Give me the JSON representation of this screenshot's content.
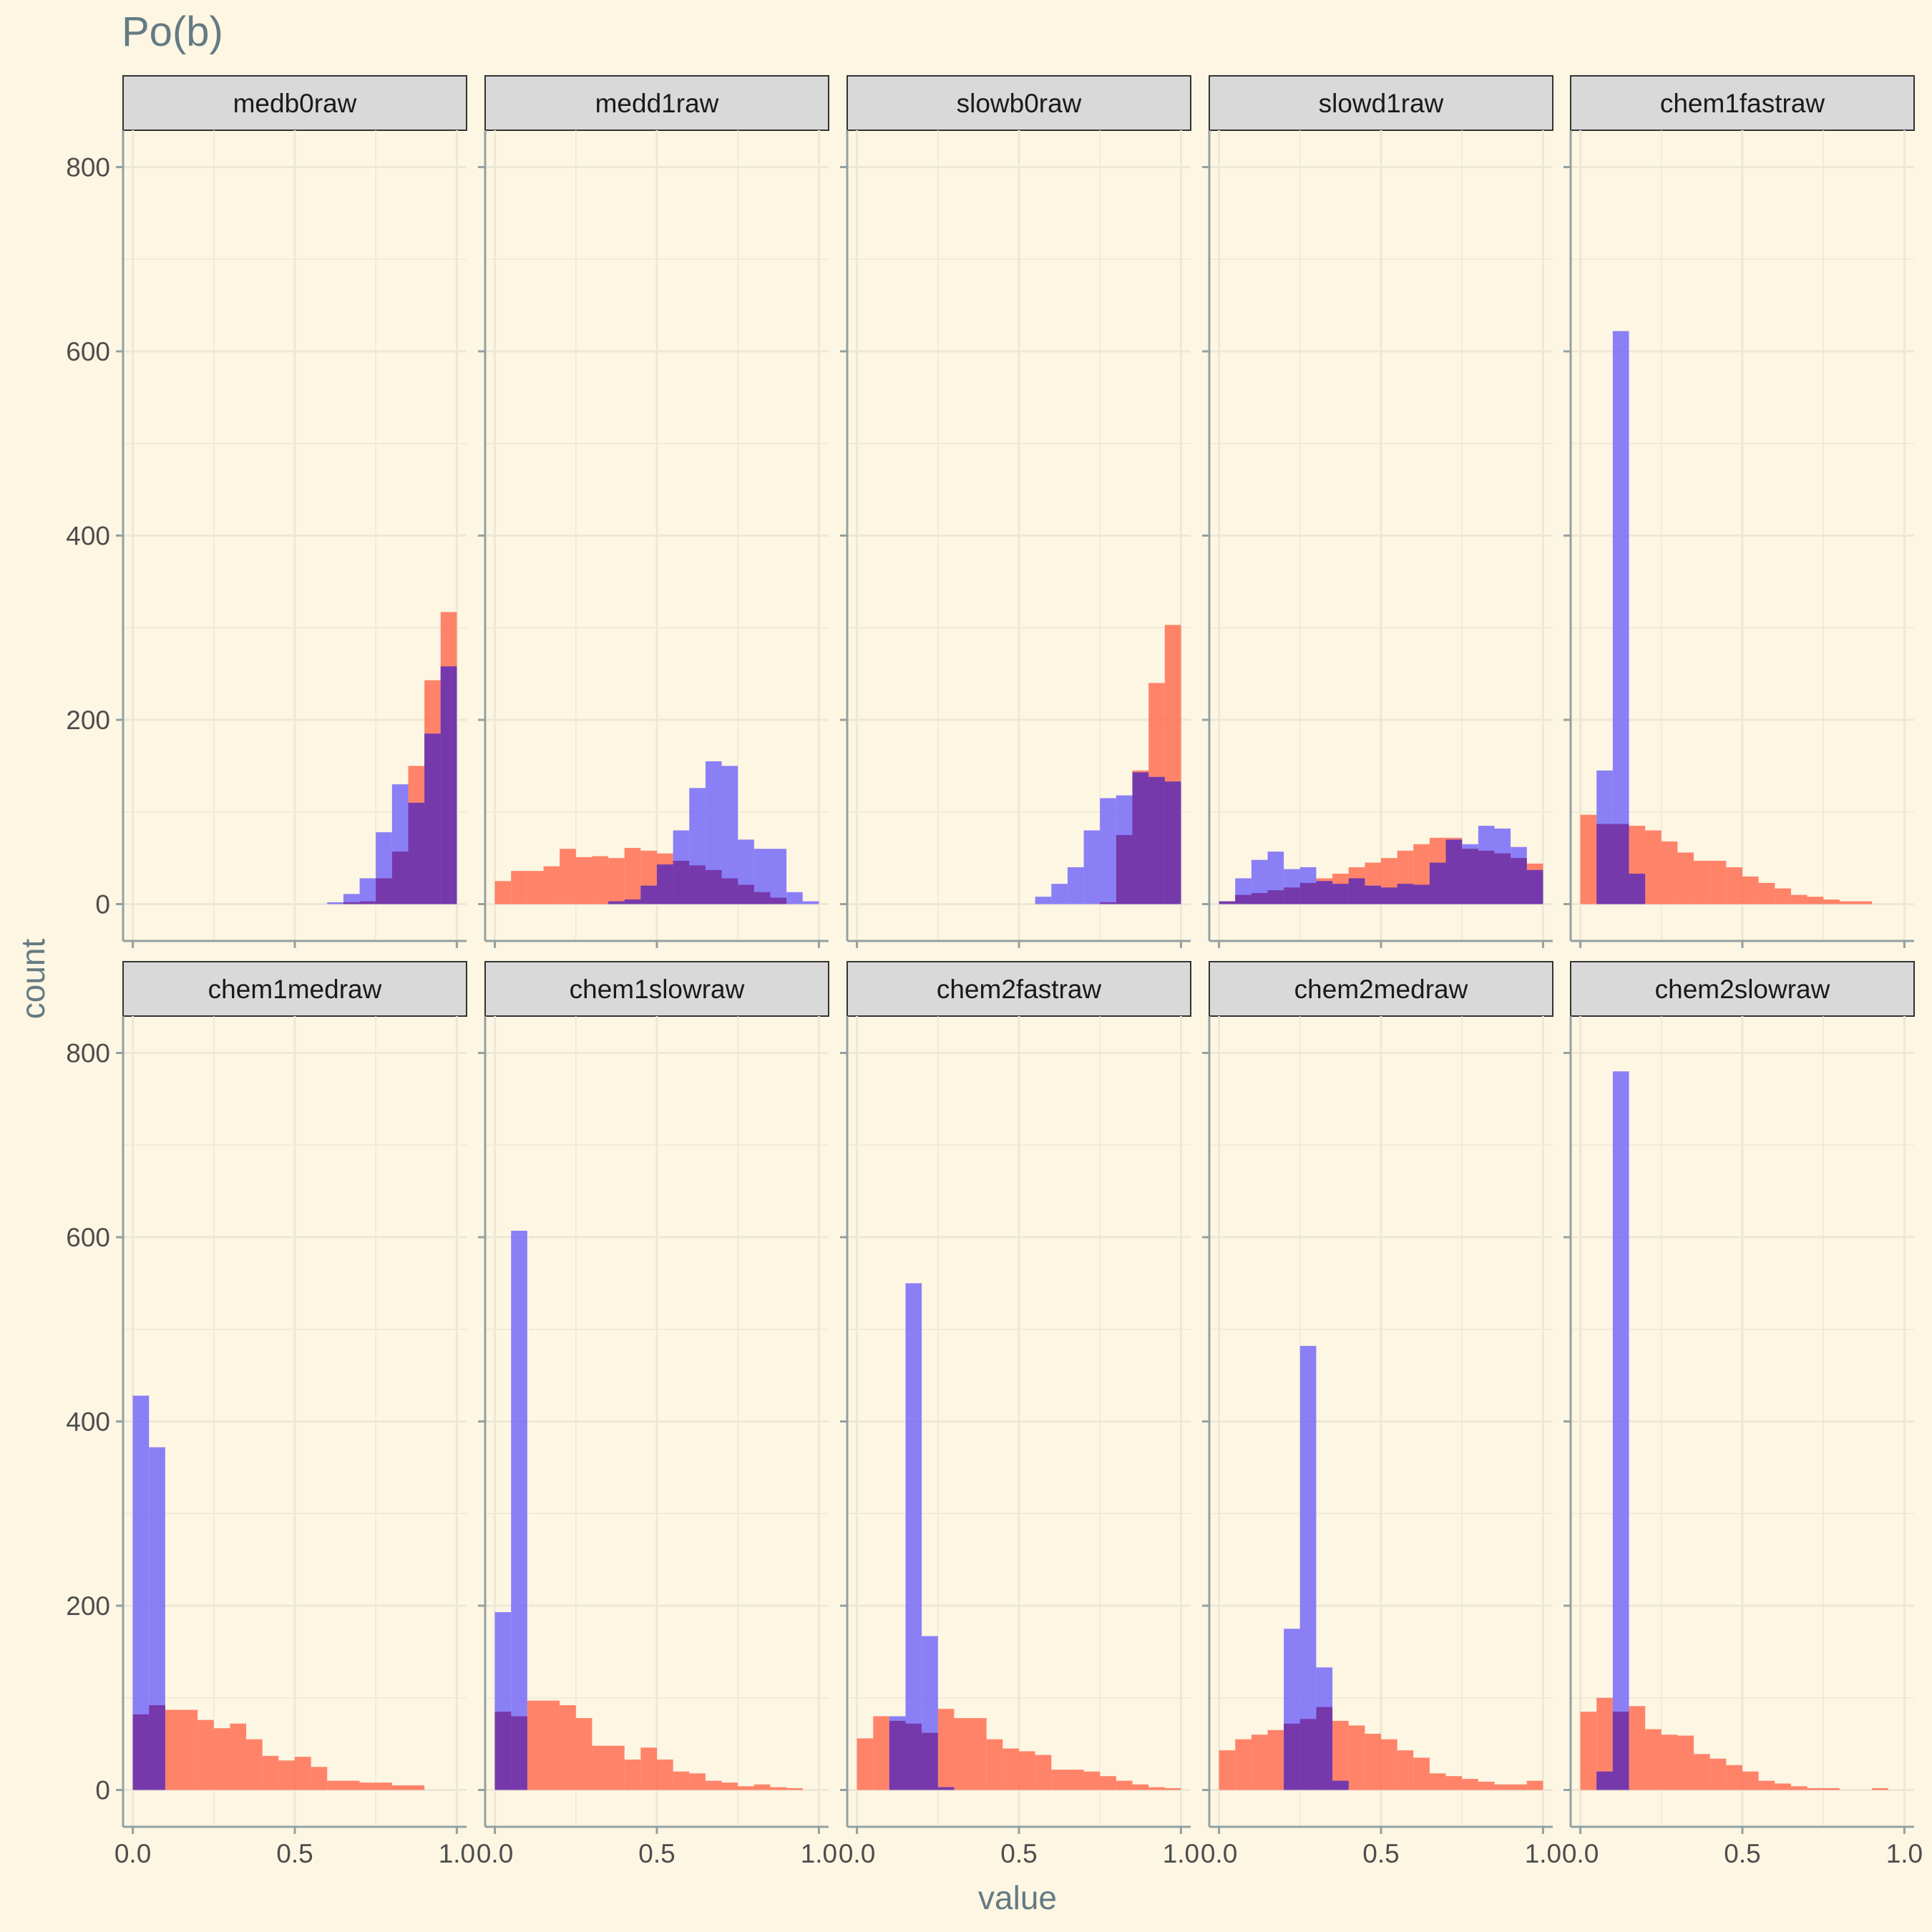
{
  "chart_data": {
    "type": "histogram-facet",
    "title": "Po(b)",
    "xlabel": "value",
    "ylabel": "count",
    "xlim": [
      -0.03,
      1.03
    ],
    "ylim": [
      -40,
      840
    ],
    "x_ticks": [
      0.0,
      0.5,
      1.0
    ],
    "x_tick_labels": [
      "0.0",
      "0.5",
      "1.0"
    ],
    "y_ticks": [
      0,
      200,
      400,
      600,
      800
    ],
    "grid": true,
    "colors": {
      "background": "#fdf6e3",
      "strip": "#d9d9d9",
      "grid": "#ede8d5",
      "text": "#657b83",
      "tick_text": "#4d4d4d",
      "axis": "#93a1a1",
      "red": "#ff6347",
      "blue": "#6a5dfb",
      "overlap": "#7030a0"
    },
    "facets": [
      {
        "name": "medb0raw",
        "red": {
          "start": 0.6,
          "width": 0.05,
          "values": [
            0,
            2,
            3,
            28,
            57,
            150,
            243,
            317
          ]
        },
        "blue": {
          "start": 0.6,
          "width": 0.05,
          "values": [
            2,
            11,
            28,
            78,
            130,
            110,
            185,
            258
          ]
        }
      },
      {
        "name": "medd1raw",
        "red": {
          "start": 0.0,
          "width": 0.05,
          "values": [
            25,
            36,
            36,
            41,
            60,
            51,
            52,
            50,
            61,
            58,
            55,
            47,
            42,
            37,
            28,
            21,
            13,
            7
          ]
        },
        "blue": {
          "start": 0.35,
          "width": 0.05,
          "values": [
            3,
            5,
            20,
            43,
            80,
            126,
            155,
            150,
            70,
            60,
            60,
            13,
            3
          ]
        }
      },
      {
        "name": "slowb0raw",
        "red": {
          "start": 0.75,
          "width": 0.05,
          "values": [
            2,
            75,
            145,
            240,
            303
          ]
        },
        "blue": {
          "start": 0.55,
          "width": 0.05,
          "values": [
            8,
            22,
            40,
            80,
            115,
            118,
            143,
            138,
            133
          ]
        }
      },
      {
        "name": "slowd1raw",
        "red": {
          "start": 0.0,
          "width": 0.05,
          "values": [
            3,
            10,
            12,
            15,
            18,
            23,
            28,
            33,
            40,
            45,
            50,
            58,
            65,
            72,
            72,
            60,
            58,
            55,
            50,
            44
          ]
        },
        "blue": {
          "start": 0.0,
          "width": 0.05,
          "values": [
            3,
            28,
            48,
            57,
            38,
            40,
            25,
            22,
            28,
            20,
            18,
            22,
            21,
            45,
            70,
            65,
            85,
            82,
            62,
            37
          ]
        }
      },
      {
        "name": "chem1fastraw",
        "red": {
          "start": 0.0,
          "width": 0.05,
          "values": [
            97,
            87,
            87,
            85,
            80,
            68,
            56,
            47,
            47,
            40,
            30,
            23,
            17,
            10,
            8,
            5,
            3,
            3
          ]
        },
        "blue": {
          "start": 0.05,
          "width": 0.05,
          "values": [
            145,
            622,
            33
          ]
        }
      },
      {
        "name": "chem1medraw",
        "red": {
          "start": 0.0,
          "width": 0.05,
          "values": [
            82,
            92,
            87,
            87,
            76,
            67,
            72,
            55,
            37,
            32,
            36,
            25,
            10,
            10,
            8,
            8,
            5,
            5
          ]
        },
        "blue": {
          "start": 0.0,
          "width": 0.05,
          "values": [
            428,
            372
          ]
        }
      },
      {
        "name": "chem1slowraw",
        "red": {
          "start": 0.0,
          "width": 0.05,
          "values": [
            85,
            80,
            97,
            97,
            92,
            78,
            48,
            48,
            33,
            46,
            33,
            20,
            18,
            10,
            8,
            4,
            6,
            3,
            2
          ]
        },
        "blue": {
          "start": 0.0,
          "width": 0.05,
          "values": [
            193,
            607
          ]
        }
      },
      {
        "name": "chem2fastraw",
        "red": {
          "start": 0.0,
          "width": 0.05,
          "values": [
            56,
            80,
            75,
            72,
            62,
            88,
            78,
            78,
            55,
            45,
            42,
            38,
            22,
            22,
            20,
            15,
            10,
            6,
            3,
            2
          ]
        },
        "blue": {
          "start": 0.1,
          "width": 0.05,
          "values": [
            80,
            550,
            167,
            3
          ]
        }
      },
      {
        "name": "chem2medraw",
        "red": {
          "start": 0.0,
          "width": 0.05,
          "values": [
            43,
            55,
            60,
            65,
            72,
            77,
            90,
            75,
            70,
            61,
            55,
            43,
            35,
            18,
            15,
            12,
            9,
            6,
            6,
            10
          ]
        },
        "blue": {
          "start": 0.2,
          "width": 0.05,
          "values": [
            175,
            482,
            133,
            10
          ]
        }
      },
      {
        "name": "chem2slowraw",
        "red": {
          "start": 0.0,
          "width": 0.05,
          "values": [
            85,
            100,
            85,
            91,
            66,
            60,
            59,
            39,
            34,
            27,
            20,
            10,
            7,
            4,
            2,
            2,
            0,
            0,
            2
          ]
        },
        "blue": {
          "start": 0.05,
          "width": 0.05,
          "values": [
            20,
            780
          ]
        }
      }
    ]
  }
}
